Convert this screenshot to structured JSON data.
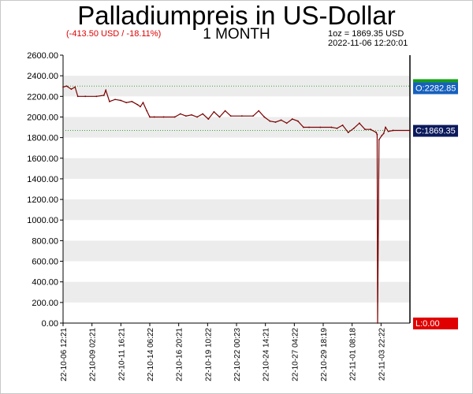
{
  "header": {
    "title": "Palladiumpreis in US-Dollar",
    "period": "1 MONTH",
    "change": "(-413.50 USD / -18.11%)",
    "unit_line": "1oz = 1869.35 USD",
    "timestamp": "2022-11-06 12:20:01"
  },
  "colors": {
    "line": "#7a0000",
    "open_tag": "#1560bd",
    "close_tag": "#0b1a5c",
    "low_tag": "#e00000",
    "high_tag": "#17a017",
    "ref_line": "#3aa23a",
    "band": "#ececec"
  },
  "tags": {
    "open": "O:2282.85",
    "close": "C:1869.35",
    "low": "L:0.00"
  },
  "chart_data": {
    "type": "line",
    "title": "Palladiumpreis in US-Dollar",
    "subtitle": "1 MONTH",
    "ylim": [
      0,
      2600
    ],
    "yticks": [
      "2600.00",
      "2400.00",
      "2200.00",
      "2000.00",
      "1800.00",
      "1600.00",
      "1400.00",
      "1200.00",
      "1000.00",
      "800.00",
      "600.00",
      "400.00",
      "200.00",
      "0.00"
    ],
    "xticks": [
      "22-10-06 12:21",
      "22-10-09 02:21",
      "22-10-11 16:21",
      "22-10-14 06:22",
      "22-10-16 20:21",
      "22-10-19 10:22",
      "22-10-22 00:23",
      "22-10-24 14:21",
      "22-10-27 04:22",
      "22-10-29 18:19",
      "22-11-01 08:18",
      "22-11-03 22:22"
    ],
    "grid": "alternating horizontal bands",
    "reference_lines": [
      2300,
      1869.35
    ],
    "series": [
      {
        "x": [
          "22-10-06 12:21",
          "22-10-06 20:00",
          "22-10-07 06:00",
          "22-10-07 14:00",
          "22-10-07 20:00",
          "22-10-08 12:00",
          "22-10-09 12:00",
          "22-10-10 04:00",
          "22-10-10 08:00",
          "22-10-10 16:00",
          "22-10-11 04:00",
          "22-10-11 16:21",
          "22-10-12 04:00",
          "22-10-12 16:00",
          "22-10-13 04:00",
          "22-10-13 10:00",
          "22-10-13 16:00",
          "22-10-14 00:00",
          "22-10-14 06:22",
          "22-10-14 16:00",
          "22-10-15 12:00",
          "22-10-16 12:00",
          "22-10-17 00:00",
          "22-10-17 12:00",
          "22-10-18 00:00",
          "22-10-18 12:00",
          "22-10-19 00:00",
          "22-10-19 12:00",
          "22-10-20 00:00",
          "22-10-20 12:00",
          "22-10-21 00:00",
          "22-10-21 12:00",
          "22-10-22 12:00",
          "22-10-23 12:00",
          "22-10-24 00:00",
          "22-10-24 12:00",
          "22-10-25 00:00",
          "22-10-25 12:00",
          "22-10-26 00:00",
          "22-10-26 12:00",
          "22-10-27 00:00",
          "22-10-27 12:00",
          "22-10-28 00:00",
          "22-10-28 12:00",
          "22-10-29 12:00",
          "22-10-30 12:00",
          "22-10-31 00:00",
          "22-10-31 12:00",
          "22-11-01 00:00",
          "22-11-01 12:00",
          "22-11-02 00:00",
          "22-11-02 12:00",
          "22-11-03 00:00",
          "22-11-03 12:00",
          "22-11-03 14:00",
          "22-11-03 15:00",
          "22-11-03 18:00",
          "22-11-04 00:00",
          "22-11-04 04:00",
          "22-11-04 08:00",
          "22-11-04 14:00",
          "22-11-05 00:00",
          "22-11-06 12:20"
        ],
        "values": [
          2290,
          2300,
          2270,
          2290,
          2200,
          2200,
          2200,
          2210,
          2260,
          2150,
          2170,
          2160,
          2140,
          2150,
          2120,
          2100,
          2140,
          2060,
          2000,
          2000,
          2000,
          2000,
          2030,
          2010,
          2020,
          2000,
          2030,
          1980,
          2050,
          2000,
          2060,
          2010,
          2010,
          2010,
          2060,
          2000,
          1960,
          1950,
          1970,
          1940,
          1980,
          1960,
          1900,
          1900,
          1900,
          1900,
          1890,
          1920,
          1850,
          1890,
          1940,
          1880,
          1880,
          1850,
          1830,
          0,
          1780,
          1820,
          1840,
          1900,
          1860,
          1870,
          1869.35
        ]
      }
    ]
  }
}
